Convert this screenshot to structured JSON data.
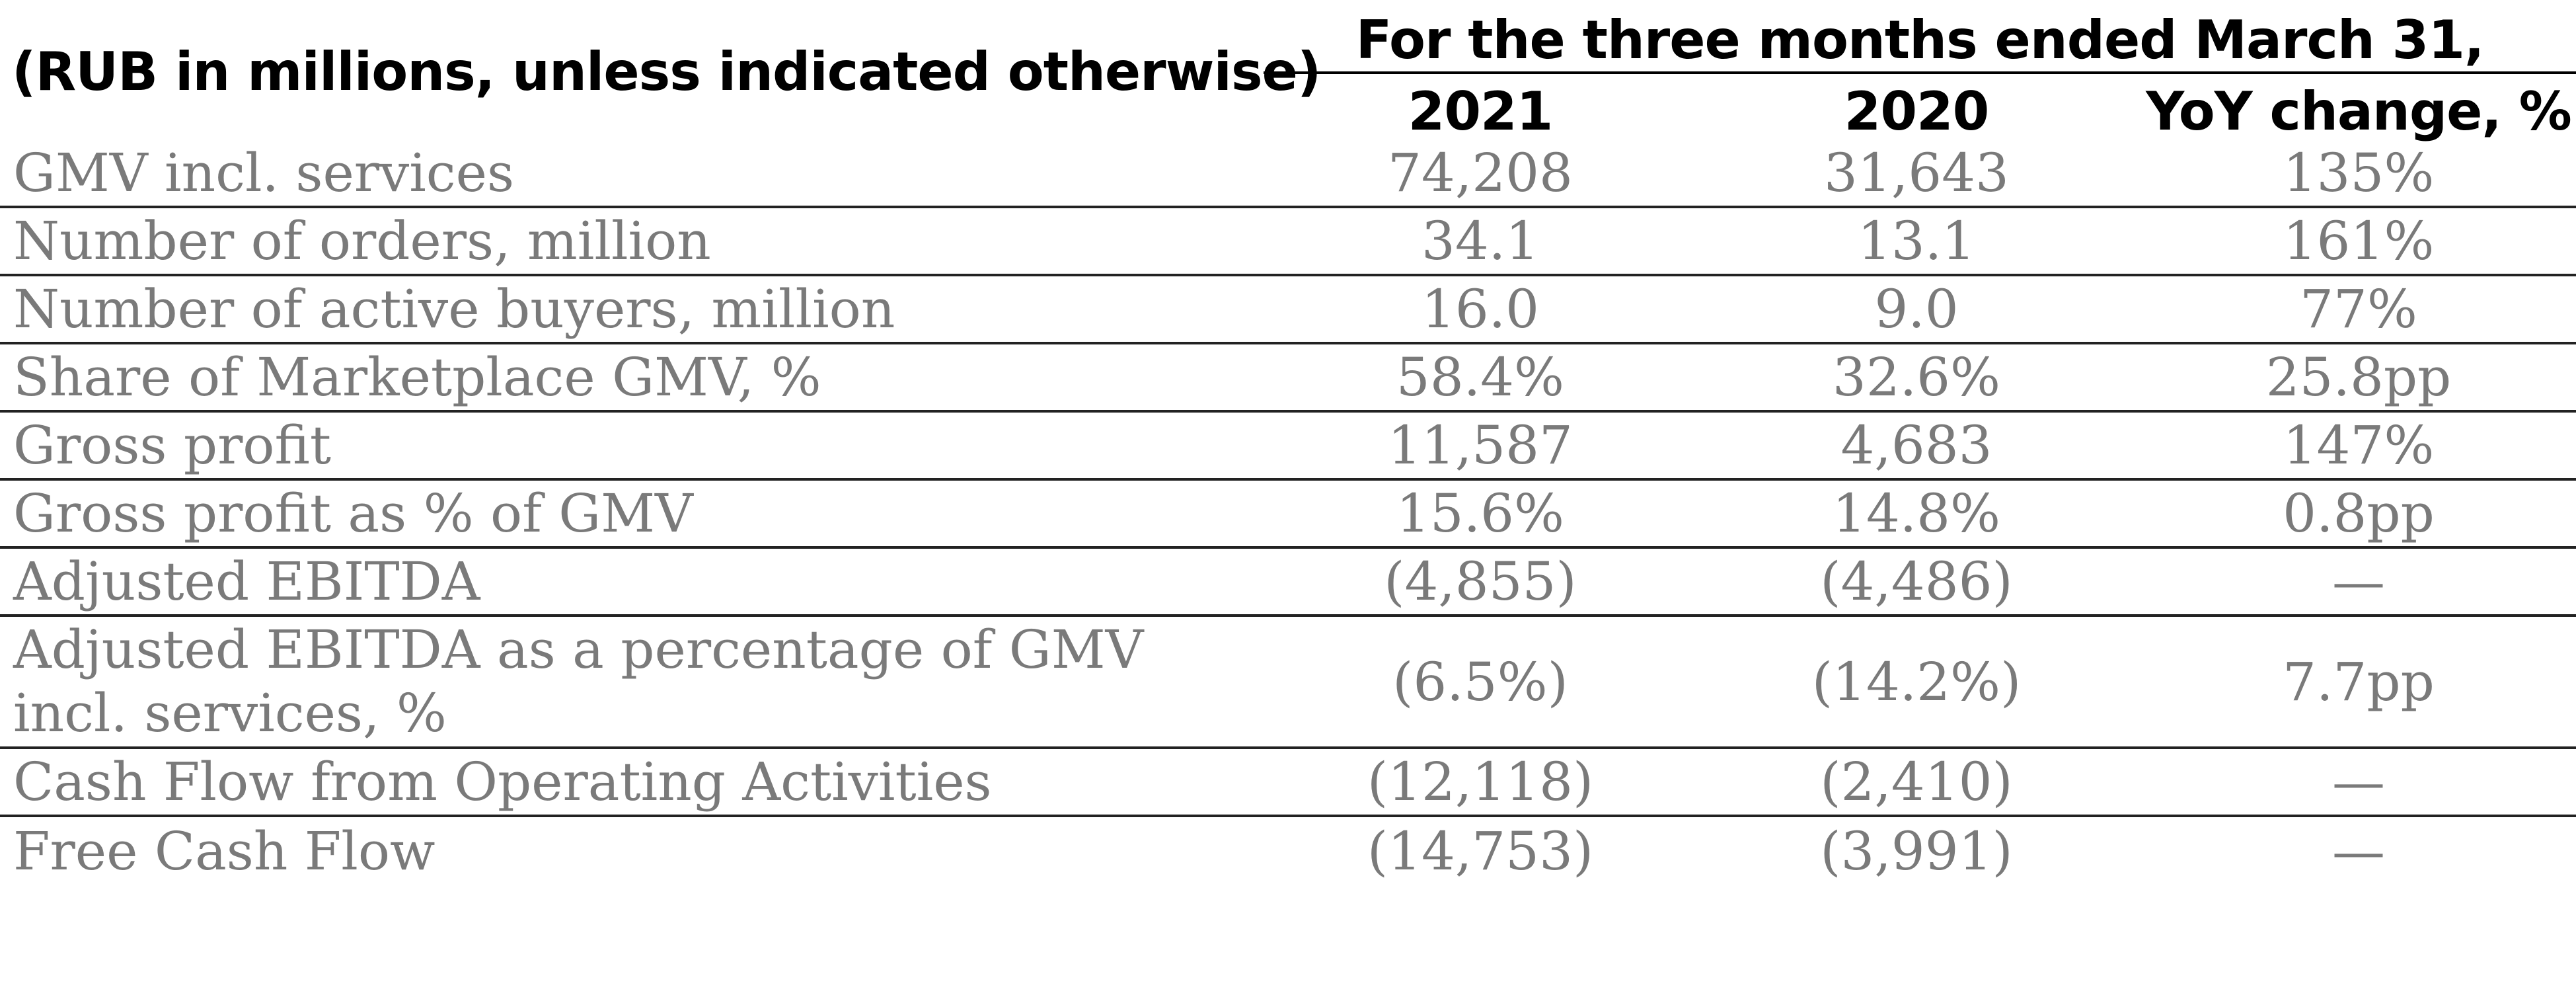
{
  "header": {
    "units_note": "(RUB in millions, unless indicated otherwise)",
    "period": "For the three months ended March 31,",
    "columns": [
      "2021",
      "2020",
      "YoY change, %"
    ]
  },
  "rows": [
    {
      "label": "GMV incl. services",
      "v2021": "74,208",
      "v2020": "31,643",
      "yoy": "135%"
    },
    {
      "label": "Number of orders, million",
      "v2021": "34.1",
      "v2020": "13.1",
      "yoy": "161%"
    },
    {
      "label": "Number of active buyers, million",
      "v2021": "16.0",
      "v2020": "9.0",
      "yoy": "77%"
    },
    {
      "label": "Share of Marketplace GMV, %",
      "v2021": "58.4%",
      "v2020": "32.6%",
      "yoy": "25.8pp"
    },
    {
      "label": "Gross profit",
      "v2021": "11,587",
      "v2020": "4,683",
      "yoy": "147%"
    },
    {
      "label": "Gross profit as % of GMV",
      "v2021": "15.6%",
      "v2020": "14.8%",
      "yoy": "0.8pp"
    },
    {
      "label": "Adjusted EBITDA",
      "v2021": "(4,855)",
      "v2020": "(4,486)",
      "yoy": "—"
    },
    {
      "label": "Adjusted EBITDA as a percentage of GMV incl. services, %",
      "v2021": "(6.5%)",
      "v2020": "(14.2%)",
      "yoy": "7.7pp"
    },
    {
      "label": "Cash Flow from Operating Activities",
      "v2021": "(12,118)",
      "v2020": "(2,410)",
      "yoy": "—"
    },
    {
      "label": "Free Cash Flow",
      "v2021": "(14,753)",
      "v2020": "(3,991)",
      "yoy": "—"
    }
  ]
}
